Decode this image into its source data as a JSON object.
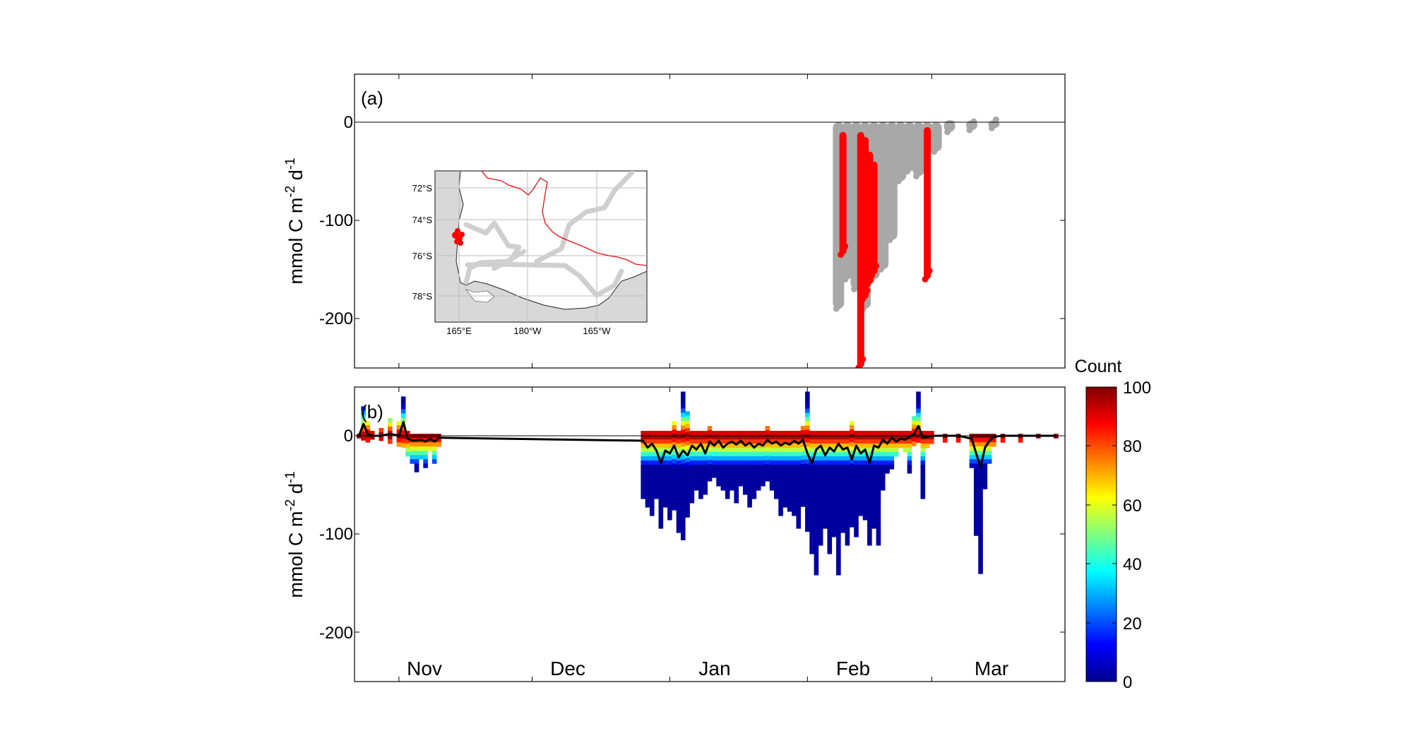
{
  "panel_a": {
    "label": "(a)",
    "ylabel_main": "mmol C m",
    "ylabel_exp1": "-2",
    "ylabel_mid": " d",
    "ylabel_exp2": "-1",
    "yticks": [
      "0",
      "-100",
      "-200"
    ]
  },
  "inset_map": {
    "lat_labels": [
      "72°S",
      "74°S",
      "76°S",
      "78°S"
    ],
    "lon_labels": [
      "165°E",
      "180°W",
      "165°W"
    ],
    "colors": {
      "land": "#d8d8d8",
      "track": "#cccccc",
      "boundary": "#e01010",
      "highlight": "#ff0000"
    }
  },
  "panel_b": {
    "label": "(b)",
    "ylabel_main": "mmol C m",
    "ylabel_exp1": "-2",
    "ylabel_mid": " d",
    "ylabel_exp2": "-1",
    "yticks": [
      "0",
      "-100",
      "-200"
    ],
    "months": [
      "Nov",
      "Dec",
      "Jan",
      "Feb",
      "Mar"
    ]
  },
  "colorbar": {
    "title": "Count",
    "ticks": [
      "100",
      "80",
      "60",
      "40",
      "20",
      "0"
    ]
  },
  "chart_data": [
    {
      "type": "scatter",
      "title": "",
      "panel": "(a)",
      "xlabel": "",
      "ylabel": "mmol C m-2 d-1",
      "ylim": [
        -250,
        50
      ],
      "xlim": [
        "Oct 22",
        "Mar 31"
      ],
      "x_axis": "date",
      "series": [
        {
          "color": "#a8a8a8",
          "spans": [
            {
              "x": "Feb 8",
              "ymin": -190,
              "ymax": 0
            },
            {
              "x": "Feb 10",
              "ymin": -160,
              "ymax": 0
            },
            {
              "x": "Feb 12",
              "ymin": -170,
              "ymax": 0
            },
            {
              "x": "Feb 14",
              "ymin": -190,
              "ymax": 0
            },
            {
              "x": "Feb 16",
              "ymin": -160,
              "ymax": 0
            },
            {
              "x": "Feb 18",
              "ymin": -150,
              "ymax": 0
            },
            {
              "x": "Feb 20",
              "ymin": -120,
              "ymax": 0
            },
            {
              "x": "Feb 22",
              "ymin": -60,
              "ymax": 0
            },
            {
              "x": "Feb 24",
              "ymin": -50,
              "ymax": 0
            },
            {
              "x": "Feb 26",
              "ymin": -55,
              "ymax": 0
            },
            {
              "x": "Feb 28",
              "ymin": -30,
              "ymax": 0
            },
            {
              "x": "Mar 2",
              "ymin": -30,
              "ymax": 0
            },
            {
              "x": "Mar 5",
              "ymin": -10,
              "ymax": 2
            },
            {
              "x": "Mar 10",
              "ymin": -8,
              "ymax": 2
            },
            {
              "x": "Mar 15",
              "ymin": -6,
              "ymax": 2
            }
          ]
        },
        {
          "color": "#ff0000",
          "spans": [
            {
              "x": "Feb 9",
              "ymin": -135,
              "ymax": -10
            },
            {
              "x": "Feb 13",
              "ymin": -250,
              "ymax": -10
            },
            {
              "x": "Feb 14",
              "ymin": -180,
              "ymax": -15
            },
            {
              "x": "Feb 15",
              "ymin": -165,
              "ymax": -30
            },
            {
              "x": "Feb 16",
              "ymin": -155,
              "ymax": -40
            },
            {
              "x": "Feb 28",
              "ymin": -160,
              "ymax": -5
            }
          ]
        }
      ]
    },
    {
      "type": "heatmap",
      "title": "",
      "panel": "(b)",
      "xlabel": "",
      "ylabel": "mmol C m-2 d-1",
      "ylim": [
        -250,
        50
      ],
      "xlim": [
        "Oct 22",
        "Mar 31"
      ],
      "x_axis": "date",
      "color_scale": {
        "label": "Count",
        "min": 0,
        "max": 100,
        "colormap": "jet"
      },
      "columns": [
        {
          "x": "Oct 23",
          "ymin": -2,
          "ymax": 2
        },
        {
          "x": "Oct 24",
          "ymin": -3,
          "ymax": 30
        },
        {
          "x": "Oct 25",
          "ymin": -3,
          "ymax": 15
        },
        {
          "x": "Oct 26",
          "ymin": -2,
          "ymax": 5
        },
        {
          "x": "Oct 28",
          "ymin": -4,
          "ymax": 8
        },
        {
          "x": "Oct 30",
          "ymin": -5,
          "ymax": 18
        },
        {
          "x": "Nov 1",
          "ymin": -8,
          "ymax": 15
        },
        {
          "x": "Nov 2",
          "ymin": -10,
          "ymax": 40
        },
        {
          "x": "Nov 3",
          "ymin": -20,
          "ymax": 5
        },
        {
          "x": "Nov 4",
          "ymin": -28,
          "ymax": 2
        },
        {
          "x": "Nov 5",
          "ymin": -35,
          "ymax": 2
        },
        {
          "x": "Nov 6",
          "ymin": -22,
          "ymax": 2
        },
        {
          "x": "Nov 7",
          "ymin": -30,
          "ymax": 2
        },
        {
          "x": "Nov 8",
          "ymin": -15,
          "ymax": 2
        },
        {
          "x": "Nov 9",
          "ymin": -25,
          "ymax": 2
        },
        {
          "x": "Nov 10",
          "ymin": -10,
          "ymax": 2
        },
        {
          "x": "Dec 26",
          "ymin": -60,
          "ymax": 5
        },
        {
          "x": "Dec 27",
          "ymin": -70,
          "ymax": 5
        },
        {
          "x": "Dec 28",
          "ymin": -80,
          "ymax": 5
        },
        {
          "x": "Dec 29",
          "ymin": -60,
          "ymax": 5
        },
        {
          "x": "Dec 30",
          "ymin": -90,
          "ymax": 5
        },
        {
          "x": "Dec 31",
          "ymin": -70,
          "ymax": 5
        },
        {
          "x": "Jan 1",
          "ymin": -85,
          "ymax": 5
        },
        {
          "x": "Jan 2",
          "ymin": -75,
          "ymax": 15
        },
        {
          "x": "Jan 3",
          "ymin": -95,
          "ymax": 5
        },
        {
          "x": "Jan 4",
          "ymin": -105,
          "ymax": 45
        },
        {
          "x": "Jan 5",
          "ymin": -80,
          "ymax": 25
        },
        {
          "x": "Jan 6",
          "ymin": -65,
          "ymax": 5
        },
        {
          "x": "Jan 7",
          "ymin": -55,
          "ymax": 5
        },
        {
          "x": "Jan 8",
          "ymin": -62,
          "ymax": 5
        },
        {
          "x": "Jan 9",
          "ymin": -58,
          "ymax": 5
        },
        {
          "x": "Jan 10",
          "ymin": -45,
          "ymax": 10
        },
        {
          "x": "Jan 11",
          "ymin": -40,
          "ymax": 5
        },
        {
          "x": "Jan 12",
          "ymin": -48,
          "ymax": 5
        },
        {
          "x": "Jan 13",
          "ymin": -52,
          "ymax": 5
        },
        {
          "x": "Jan 14",
          "ymin": -60,
          "ymax": 5
        },
        {
          "x": "Jan 15",
          "ymin": -55,
          "ymax": 5
        },
        {
          "x": "Jan 16",
          "ymin": -65,
          "ymax": 5
        },
        {
          "x": "Jan 17",
          "ymin": -50,
          "ymax": 5
        },
        {
          "x": "Jan 18",
          "ymin": -58,
          "ymax": 5
        },
        {
          "x": "Jan 19",
          "ymin": -70,
          "ymax": 5
        },
        {
          "x": "Jan 20",
          "ymin": -60,
          "ymax": 5
        },
        {
          "x": "Jan 21",
          "ymin": -55,
          "ymax": 5
        },
        {
          "x": "Jan 22",
          "ymin": -50,
          "ymax": 5
        },
        {
          "x": "Jan 23",
          "ymin": -45,
          "ymax": 10
        },
        {
          "x": "Jan 24",
          "ymin": -55,
          "ymax": 5
        },
        {
          "x": "Jan 25",
          "ymin": -60,
          "ymax": 5
        },
        {
          "x": "Jan 26",
          "ymin": -80,
          "ymax": 5
        },
        {
          "x": "Jan 27",
          "ymin": -70,
          "ymax": 5
        },
        {
          "x": "Jan 28",
          "ymin": -75,
          "ymax": 5
        },
        {
          "x": "Jan 29",
          "ymin": -80,
          "ymax": 5
        },
        {
          "x": "Jan 30",
          "ymin": -90,
          "ymax": 5
        },
        {
          "x": "Jan 31",
          "ymin": -70,
          "ymax": 10
        },
        {
          "x": "Feb 1",
          "ymin": -95,
          "ymax": 45
        },
        {
          "x": "Feb 2",
          "ymin": -120,
          "ymax": 5
        },
        {
          "x": "Feb 3",
          "ymin": -140,
          "ymax": 5
        },
        {
          "x": "Feb 4",
          "ymin": -110,
          "ymax": 5
        },
        {
          "x": "Feb 5",
          "ymin": -90,
          "ymax": 5
        },
        {
          "x": "Feb 6",
          "ymin": -120,
          "ymax": 5
        },
        {
          "x": "Feb 7",
          "ymin": -100,
          "ymax": 5
        },
        {
          "x": "Feb 8",
          "ymin": -140,
          "ymax": 5
        },
        {
          "x": "Feb 9",
          "ymin": -95,
          "ymax": 5
        },
        {
          "x": "Feb 10",
          "ymin": -110,
          "ymax": 5
        },
        {
          "x": "Feb 11",
          "ymin": -90,
          "ymax": 15
        },
        {
          "x": "Feb 12",
          "ymin": -100,
          "ymax": 5
        },
        {
          "x": "Feb 13",
          "ymin": -80,
          "ymax": 5
        },
        {
          "x": "Feb 14",
          "ymin": -85,
          "ymax": 5
        },
        {
          "x": "Feb 15",
          "ymin": -110,
          "ymax": 5
        },
        {
          "x": "Feb 16",
          "ymin": -90,
          "ymax": 5
        },
        {
          "x": "Feb 17",
          "ymin": -110,
          "ymax": 5
        },
        {
          "x": "Feb 18",
          "ymin": -55,
          "ymax": 5
        },
        {
          "x": "Feb 19",
          "ymin": -35,
          "ymax": 5
        },
        {
          "x": "Feb 20",
          "ymin": -30,
          "ymax": 5
        },
        {
          "x": "Feb 21",
          "ymin": -20,
          "ymax": 5
        },
        {
          "x": "Feb 22",
          "ymin": -10,
          "ymax": 5
        },
        {
          "x": "Feb 23",
          "ymin": -15,
          "ymax": 5
        },
        {
          "x": "Feb 24",
          "ymin": -35,
          "ymax": 5
        },
        {
          "x": "Feb 25",
          "ymin": -8,
          "ymax": 20
        },
        {
          "x": "Feb 26",
          "ymin": -6,
          "ymax": 45
        },
        {
          "x": "Feb 27",
          "ymin": -60,
          "ymax": 5
        },
        {
          "x": "Feb 28",
          "ymin": -8,
          "ymax": 5
        },
        {
          "x": "Mar 1",
          "ymin": -5,
          "ymax": 5
        },
        {
          "x": "Mar 4",
          "ymin": -4,
          "ymax": 2
        },
        {
          "x": "Mar 7",
          "ymin": -4,
          "ymax": 2
        },
        {
          "x": "Mar 10",
          "ymin": -30,
          "ymax": 2
        },
        {
          "x": "Mar 11",
          "ymin": -100,
          "ymax": 2
        },
        {
          "x": "Mar 12",
          "ymin": -140,
          "ymax": 2
        },
        {
          "x": "Mar 13",
          "ymin": -50,
          "ymax": 2
        },
        {
          "x": "Mar 14",
          "ymin": -25,
          "ymax": 2
        },
        {
          "x": "Mar 15",
          "ymin": -10,
          "ymax": 2
        },
        {
          "x": "Mar 17",
          "ymin": -4,
          "ymax": 2
        },
        {
          "x": "Mar 21",
          "ymin": -3,
          "ymax": 2
        },
        {
          "x": "Mar 25",
          "ymin": -2,
          "ymax": 2
        },
        {
          "x": "Mar 29",
          "ymin": -2,
          "ymax": 2
        }
      ],
      "line": {
        "color": "#000000",
        "points": [
          [
            "Oct 23",
            0
          ],
          [
            "Oct 24",
            12
          ],
          [
            "Oct 25",
            2
          ],
          [
            "Oct 26",
            0
          ],
          [
            "Oct 28",
            0
          ],
          [
            "Oct 30",
            2
          ],
          [
            "Nov 1",
            0
          ],
          [
            "Nov 2",
            14
          ],
          [
            "Nov 3",
            -3
          ],
          [
            "Nov 4",
            -5
          ],
          [
            "Nov 6",
            -4
          ],
          [
            "Nov 7",
            -6
          ],
          [
            "Nov 8",
            -3
          ],
          [
            "Nov 9",
            -6
          ],
          [
            "Nov 10",
            -2
          ],
          [
            "Dec 26",
            -5
          ],
          [
            "Dec 27",
            -12
          ],
          [
            "Dec 28",
            -8
          ],
          [
            "Dec 29",
            -15
          ],
          [
            "Dec 30",
            -28
          ],
          [
            "Dec 31",
            -15
          ],
          [
            "Jan 1",
            -18
          ],
          [
            "Jan 2",
            -10
          ],
          [
            "Jan 3",
            -22
          ],
          [
            "Jan 4",
            -15
          ],
          [
            "Jan 5",
            -20
          ],
          [
            "Jan 6",
            -10
          ],
          [
            "Jan 7",
            -14
          ],
          [
            "Jan 8",
            -8
          ],
          [
            "Jan 9",
            -18
          ],
          [
            "Jan 10",
            -6
          ],
          [
            "Jan 11",
            -10
          ],
          [
            "Jan 12",
            -5
          ],
          [
            "Jan 13",
            -12
          ],
          [
            "Jan 14",
            -8
          ],
          [
            "Jan 15",
            -6
          ],
          [
            "Jan 16",
            -9
          ],
          [
            "Jan 17",
            -5
          ],
          [
            "Jan 18",
            -10
          ],
          [
            "Jan 19",
            -7
          ],
          [
            "Jan 20",
            -12
          ],
          [
            "Jan 21",
            -8
          ],
          [
            "Jan 22",
            -10
          ],
          [
            "Jan 23",
            -4
          ],
          [
            "Jan 24",
            -8
          ],
          [
            "Jan 25",
            -6
          ],
          [
            "Jan 26",
            -10
          ],
          [
            "Jan 27",
            -7
          ],
          [
            "Jan 28",
            -9
          ],
          [
            "Jan 29",
            -5
          ],
          [
            "Jan 30",
            -8
          ],
          [
            "Jan 31",
            -4
          ],
          [
            "Feb 1",
            -18
          ],
          [
            "Feb 2",
            -28
          ],
          [
            "Feb 3",
            -14
          ],
          [
            "Feb 4",
            -10
          ],
          [
            "Feb 5",
            -20
          ],
          [
            "Feb 6",
            -12
          ],
          [
            "Feb 7",
            -16
          ],
          [
            "Feb 8",
            -8
          ],
          [
            "Feb 9",
            -14
          ],
          [
            "Feb 10",
            -12
          ],
          [
            "Feb 11",
            -24
          ],
          [
            "Feb 12",
            -10
          ],
          [
            "Feb 13",
            -18
          ],
          [
            "Feb 14",
            -14
          ],
          [
            "Feb 15",
            -28
          ],
          [
            "Feb 16",
            -10
          ],
          [
            "Feb 17",
            -12
          ],
          [
            "Feb 18",
            -4
          ],
          [
            "Feb 19",
            -8
          ],
          [
            "Feb 20",
            -2
          ],
          [
            "Feb 21",
            -6
          ],
          [
            "Feb 22",
            -3
          ],
          [
            "Feb 23",
            -4
          ],
          [
            "Feb 24",
            -1
          ],
          [
            "Feb 25",
            2
          ],
          [
            "Feb 26",
            10
          ],
          [
            "Feb 27",
            -2
          ],
          [
            "Feb 28",
            -1
          ],
          [
            "Mar 1",
            0
          ],
          [
            "Mar 4",
            0
          ],
          [
            "Mar 7",
            0
          ],
          [
            "Mar 10",
            -3
          ],
          [
            "Mar 11",
            -18
          ],
          [
            "Mar 12",
            -32
          ],
          [
            "Mar 13",
            -12
          ],
          [
            "Mar 14",
            -5
          ],
          [
            "Mar 15",
            -1
          ],
          [
            "Mar 17",
            0
          ],
          [
            "Mar 21",
            0
          ],
          [
            "Mar 25",
            0
          ],
          [
            "Mar 29",
            0
          ]
        ]
      }
    }
  ]
}
